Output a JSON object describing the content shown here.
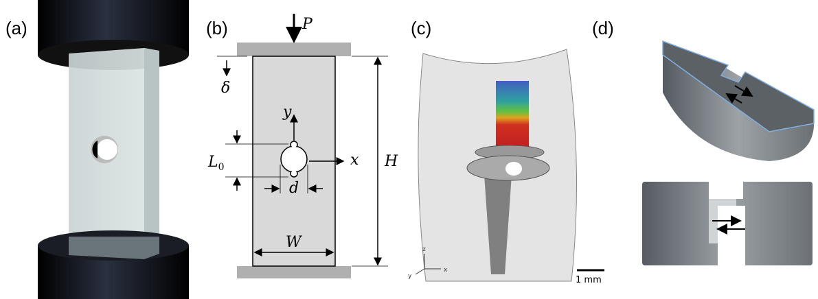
{
  "panels": [
    {
      "label": "(a)"
    },
    {
      "label": "(b)",
      "load": "P",
      "displacement": "δ",
      "y_axis": "y",
      "x_axis": "x",
      "notch_length": "L",
      "notch_length_sub": "0",
      "diameter": "d",
      "height": "H",
      "width": "W"
    },
    {
      "label": "(c)",
      "axis_z": "z",
      "axis_y": "y",
      "axis_x": "x",
      "scale_bar": "1 mm"
    },
    {
      "label": "(d)"
    }
  ]
}
